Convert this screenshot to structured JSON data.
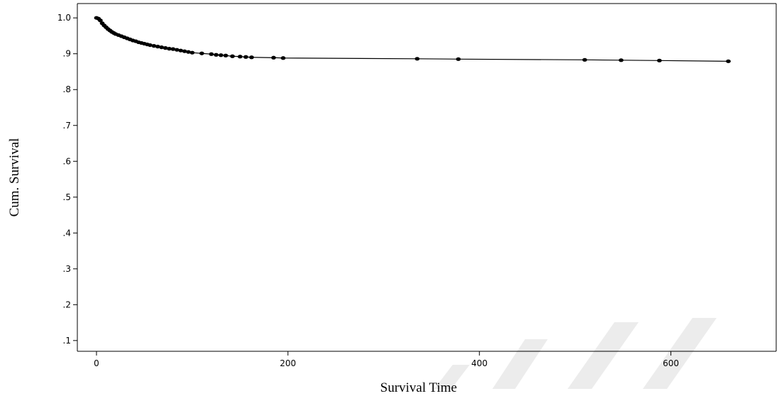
{
  "chart_data": {
    "type": "line",
    "title": "",
    "xlabel": "Survival Time",
    "ylabel": "Cum. Survival",
    "xlim": [
      -20,
      710
    ],
    "ylim": [
      0.07,
      1.04
    ],
    "xticks": [
      0,
      200,
      400,
      600
    ],
    "xtick_labels": [
      "0",
      "200",
      "400",
      "600"
    ],
    "yticks": [
      0.1,
      0.2,
      0.3,
      0.4,
      0.5,
      0.6,
      0.7,
      0.8,
      0.9,
      1.0
    ],
    "ytick_labels": [
      ".1",
      ".2",
      ".3",
      ".4",
      ".5",
      ".6",
      ".7",
      ".8",
      ".9",
      "1.0"
    ],
    "grid": false,
    "legend": "none",
    "colors": {
      "line": "#000000",
      "marker": "#000000",
      "watermark": "#ececec"
    },
    "series": [
      {
        "marker": "censor-dot",
        "x": [
          0,
          2,
          4,
          6,
          8,
          10,
          12,
          14,
          16,
          18,
          20,
          23,
          26,
          29,
          32,
          35,
          38,
          41,
          44,
          47,
          50,
          53,
          56,
          60,
          64,
          68,
          72,
          76,
          80,
          84,
          88,
          92,
          96,
          100,
          110,
          120,
          125,
          130,
          135,
          142,
          150,
          156,
          162,
          185,
          195,
          335,
          378,
          510,
          548,
          588,
          660
        ],
        "y": [
          1.0,
          0.998,
          0.993,
          0.985,
          0.979,
          0.974,
          0.969,
          0.965,
          0.961,
          0.958,
          0.955,
          0.952,
          0.949,
          0.946,
          0.943,
          0.94,
          0.937,
          0.935,
          0.932,
          0.93,
          0.928,
          0.926,
          0.924,
          0.922,
          0.92,
          0.918,
          0.916,
          0.914,
          0.913,
          0.911,
          0.909,
          0.907,
          0.905,
          0.903,
          0.901,
          0.899,
          0.897,
          0.896,
          0.895,
          0.893,
          0.892,
          0.891,
          0.89,
          0.889,
          0.888,
          0.886,
          0.885,
          0.883,
          0.882,
          0.881,
          0.879
        ]
      }
    ]
  }
}
